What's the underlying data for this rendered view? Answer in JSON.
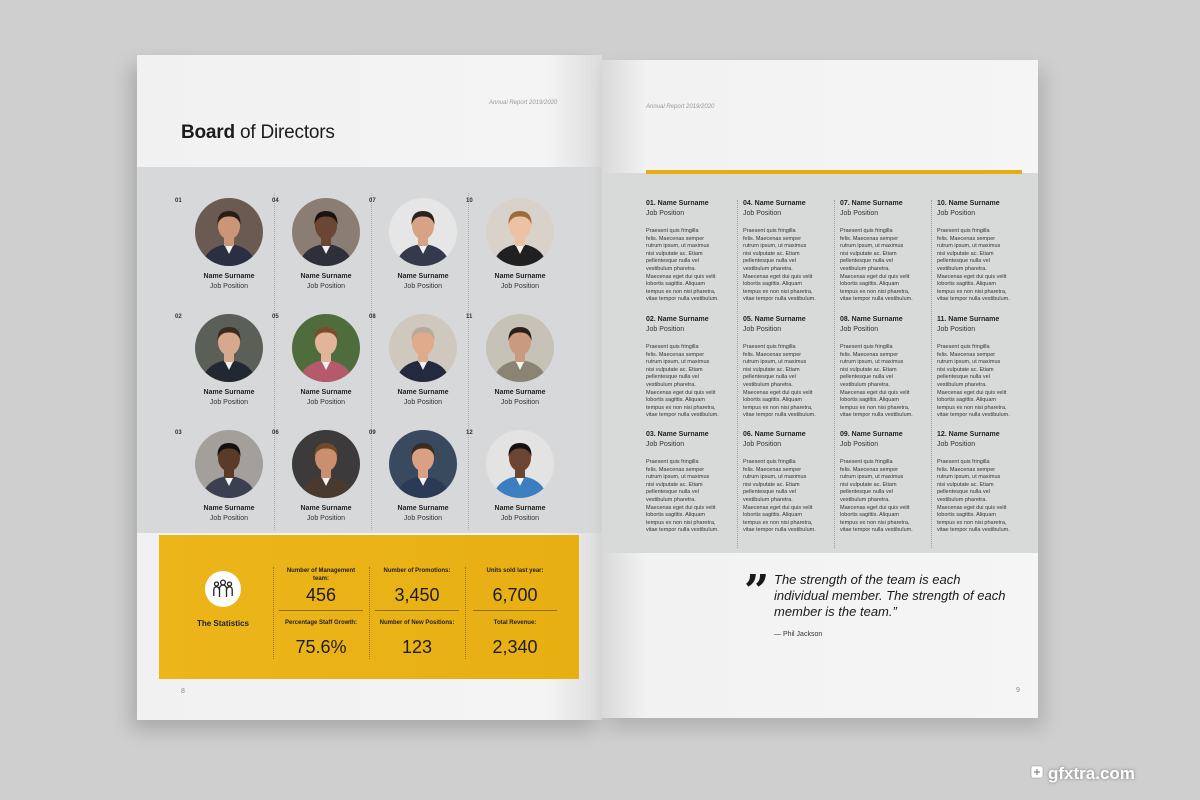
{
  "left_page": {
    "running_head": "Annual Report 2019/2020",
    "title_bold": "Board",
    "title_rest": " of Directors",
    "page_number": "8",
    "members": [
      {
        "num": "01",
        "name": "Name Surname",
        "position": "Job Position",
        "skin": "#c9967a",
        "hair": "#2a1d16",
        "shirt": "#2a2f44",
        "bg": "#6b5a52"
      },
      {
        "num": "02",
        "name": "Name Surname",
        "position": "Job Position",
        "skin": "#d7a98c",
        "hair": "#3b2a1e",
        "shirt": "#222831",
        "bg": "#5a5f57"
      },
      {
        "num": "03",
        "name": "Name Surname",
        "position": "Job Position",
        "skin": "#5a3a28",
        "hair": "#141010",
        "shirt": "#3a3f52",
        "bg": "#a39f9b"
      },
      {
        "num": "04",
        "name": "Name Surname",
        "position": "Job Position",
        "skin": "#6c4634",
        "hair": "#1a1311",
        "shirt": "#2d2f3a",
        "bg": "#8a7d73"
      },
      {
        "num": "05",
        "name": "Name Surname",
        "position": "Job Position",
        "skin": "#e2b59a",
        "hair": "#7a4c2c",
        "shirt": "#b45a6a",
        "bg": "#4f6d3c"
      },
      {
        "num": "06",
        "name": "Name Surname",
        "position": "Job Position",
        "skin": "#c98f6e",
        "hair": "#6e4a2a",
        "shirt": "#4a3a2e",
        "bg": "#3c3a3a"
      },
      {
        "num": "07",
        "name": "Name Surname",
        "position": "Job Position",
        "skin": "#d6a386",
        "hair": "#2c211c",
        "shirt": "#34394c",
        "bg": "#e6e6e6"
      },
      {
        "num": "08",
        "name": "Name Surname",
        "position": "Job Position",
        "skin": "#e0aa8c",
        "hair": "#b9a89a",
        "shirt": "#232a3d",
        "bg": "#cfc8bf"
      },
      {
        "num": "09",
        "name": "Name Surname",
        "position": "Job Position",
        "skin": "#d9a084",
        "hair": "#3b2b20",
        "shirt": "#2b3a57",
        "bg": "#3a4a5e"
      },
      {
        "num": "10",
        "name": "Name Surname",
        "position": "Job Position",
        "skin": "#ecc2a4",
        "hair": "#9c6c3a",
        "shirt": "#202020",
        "bg": "#d8d2ca"
      },
      {
        "num": "11",
        "name": "Name Surname",
        "position": "Job Position",
        "skin": "#c99a7e",
        "hair": "#2d2018",
        "shirt": "#8a8475",
        "bg": "#c7c2b8"
      },
      {
        "num": "12",
        "name": "Name Surname",
        "position": "Job Position",
        "skin": "#6a4532",
        "hair": "#151111",
        "shirt": "#3b7fc1",
        "bg": "#e3e3e3"
      }
    ],
    "stats": {
      "label": "The Statistics",
      "items": [
        {
          "label": "Number of Management team:",
          "value": "456"
        },
        {
          "label": "Number of Promotions:",
          "value": "3,450"
        },
        {
          "label": "Units sold last year:",
          "value": "6,700"
        },
        {
          "label": "Percentage Staff Growth:",
          "value": "75.6%"
        },
        {
          "label": "Number of New Positions:",
          "value": "123"
        },
        {
          "label": "Total Revenue:",
          "value": "2,340"
        }
      ]
    }
  },
  "right_page": {
    "running_head": "Annual Report 2019/2020",
    "page_number": "9",
    "bios": [
      {
        "name": "01. Name Surname",
        "position": "Job Position",
        "text": "Praesent quis fringilla\nfelis. Maecenas semper\nrutrum ipsum, ut maximus\nnisi vulputate ac. Etiam\npellentesque nulla vel\nvestibulum pharetra.\nMaecenas eget dui quis velit\nlobortis sagittis. Aliquam\ntempus ex non nisi pharetra,\nvitae tempor nulla vestibulum."
      },
      {
        "name": "02. Name Surname",
        "position": "Job Position",
        "text": "Praesent quis fringilla\nfelis. Maecenas semper\nrutrum ipsum, ut maximus\nnisi vulputate ac. Etiam\npellentesque nulla vel\nvestibulum pharetra.\nMaecenas eget dui quis velit\nlobortis sagittis. Aliquam\ntempus ex non nisi pharetra,\nvitae tempor nulla vestibulum."
      },
      {
        "name": "03. Name Surname",
        "position": "Job Position",
        "text": "Praesent quis fringilla\nfelis. Maecenas semper\nrutrum ipsum, ut maximus\nnisi vulputate ac. Etiam\npellentesque nulla vel\nvestibulum pharetra.\nMaecenas eget dui quis velit\nlobortis sagittis. Aliquam\ntempus ex non nisi pharetra,\nvitae tempor nulla vestibulum."
      },
      {
        "name": "04. Name Surname",
        "position": "Job Position",
        "text": "Praesent quis fringilla\nfelis. Maecenas semper\nrutrum ipsum, ut maximus\nnisi vulputate ac. Etiam\npellentesque nulla vel\nvestibulum pharetra.\nMaecenas eget dui quis velit\nlobortis sagittis. Aliquam\ntempus ex non nisi pharetra,\nvitae tempor nulla vestibulum."
      },
      {
        "name": "05. Name Surname",
        "position": "Job Position",
        "text": "Praesent quis fringilla\nfelis. Maecenas semper\nrutrum ipsum, ut maximus\nnisi vulputate ac. Etiam\npellentesque nulla vel\nvestibulum pharetra.\nMaecenas eget dui quis velit\nlobortis sagittis. Aliquam\ntempus ex non nisi pharetra,\nvitae tempor nulla vestibulum."
      },
      {
        "name": "06. Name Surname",
        "position": "Job Position",
        "text": "Praesent quis fringilla\nfelis. Maecenas semper\nrutrum ipsum, ut maximus\nnisi vulputate ac. Etiam\npellentesque nulla vel\nvestibulum pharetra.\nMaecenas eget dui quis velit\nlobortis sagittis. Aliquam\ntempus ex non nisi pharetra,\nvitae tempor nulla vestibulum."
      },
      {
        "name": "07. Name Surname",
        "position": "Job Position",
        "text": "Praesent quis fringilla\nfelis. Maecenas semper\nrutrum ipsum, ut maximus\nnisi vulputate ac. Etiam\npellentesque nulla vel\nvestibulum pharetra.\nMaecenas eget dui quis velit\nlobortis sagittis. Aliquam\ntempus ex non nisi pharetra,\nvitae tempor nulla vestibulum."
      },
      {
        "name": "08. Name Surname",
        "position": "Job Position",
        "text": "Praesent quis fringilla\nfelis. Maecenas semper\nrutrum ipsum, ut maximus\nnisi vulputate ac. Etiam\npellentesque nulla vel\nvestibulum pharetra.\nMaecenas eget dui quis velit\nlobortis sagittis. Aliquam\ntempus ex non nisi pharetra,\nvitae tempor nulla vestibulum."
      },
      {
        "name": "09. Name Surname",
        "position": "Job Position",
        "text": "Praesent quis fringilla\nfelis. Maecenas semper\nrutrum ipsum, ut maximus\nnisi vulputate ac. Etiam\npellentesque nulla vel\nvestibulum pharetra.\nMaecenas eget dui quis velit\nlobortis sagittis. Aliquam\ntempus ex non nisi pharetra,\nvitae tempor nulla vestibulum."
      },
      {
        "name": "10. Name Surname",
        "position": "Job Position",
        "text": "Praesent quis fringilla\nfelis. Maecenas semper\nrutrum ipsum, ut maximus\nnisi vulputate ac. Etiam\npellentesque nulla vel\nvestibulum pharetra.\nMaecenas eget dui quis velit\nlobortis sagittis. Aliquam\ntempus ex non nisi pharetra,\nvitae tempor nulla vestibulum."
      },
      {
        "name": "11. Name Surname",
        "position": "Job Position",
        "text": "Praesent quis fringilla\nfelis. Maecenas semper\nrutrum ipsum, ut maximus\nnisi vulputate ac. Etiam\npellentesque nulla vel\nvestibulum pharetra.\nMaecenas eget dui quis velit\nlobortis sagittis. Aliquam\ntempus ex non nisi pharetra,\nvitae tempor nulla vestibulum."
      },
      {
        "name": "12. Name Surname",
        "position": "Job Position",
        "text": "Praesent quis fringilla\nfelis. Maecenas semper\nrutrum ipsum, ut maximus\nnisi vulputate ac. Etiam\npellentesque nulla vel\nvestibulum pharetra.\nMaecenas eget dui quis velit\nlobortis sagittis. Aliquam\ntempus ex non nisi pharetra,\nvitae tempor nulla vestibulum."
      }
    ],
    "quote": {
      "mark": "”",
      "text": "The strength of the team is each individual member. The strength of each member is the team.”",
      "author": "— Phil Jackson"
    }
  },
  "watermark": "gfxtra.com",
  "colors": {
    "accent": "#e7af12",
    "panel": "#d7d8d9",
    "paper": "#f3f3f3"
  }
}
